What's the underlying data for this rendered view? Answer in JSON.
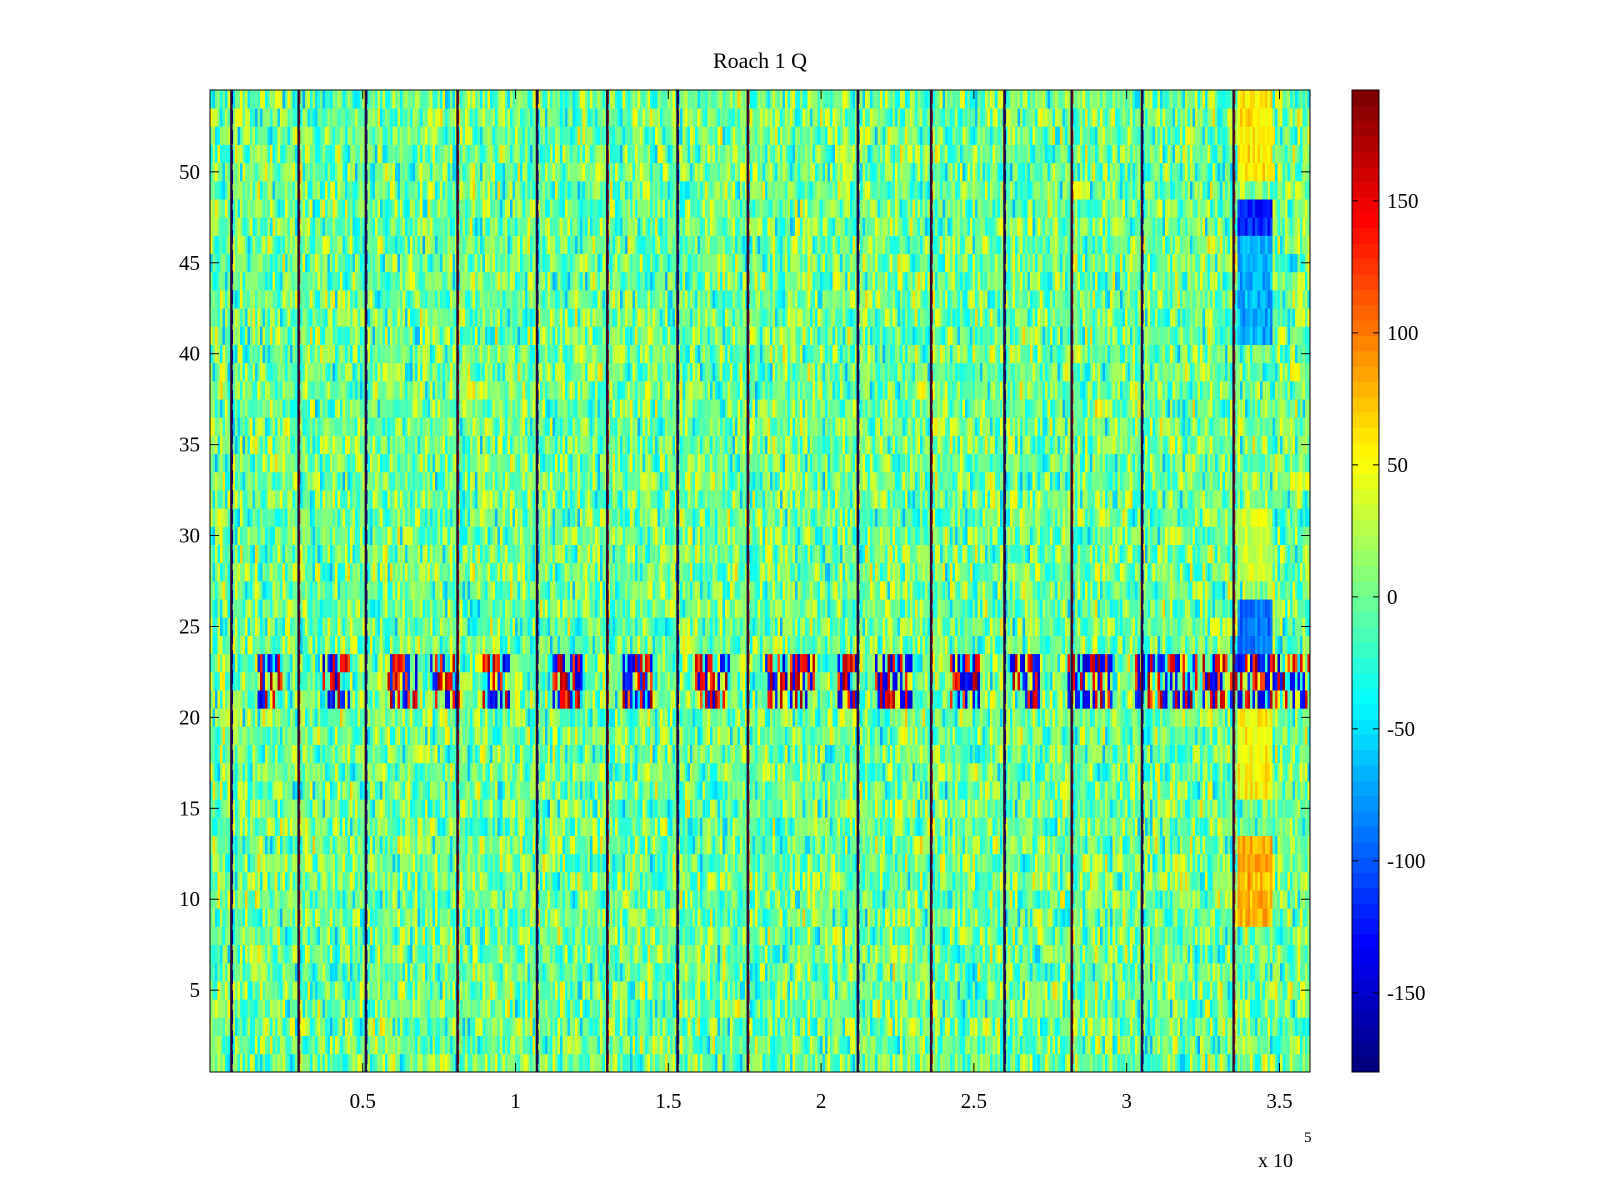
{
  "chart_data": {
    "type": "heatmap",
    "title": "Roach 1 Q",
    "xlabel": "",
    "ylabel": "",
    "colormap": "jet",
    "x_exponent_prefix": "x 10",
    "x_exponent_power": "5",
    "xlim": [
      0,
      3.6
    ],
    "ylim": [
      0.5,
      54.5
    ],
    "clim": [
      -180,
      192
    ],
    "x_ticks": [
      {
        "value": 0.5,
        "label": "0.5"
      },
      {
        "value": 1.0,
        "label": "1"
      },
      {
        "value": 1.5,
        "label": "1.5"
      },
      {
        "value": 2.0,
        "label": "2"
      },
      {
        "value": 2.5,
        "label": "2.5"
      },
      {
        "value": 3.0,
        "label": "3"
      },
      {
        "value": 3.5,
        "label": "3.5"
      }
    ],
    "y_ticks": [
      {
        "value": 5,
        "label": "5"
      },
      {
        "value": 10,
        "label": "10"
      },
      {
        "value": 15,
        "label": "15"
      },
      {
        "value": 20,
        "label": "20"
      },
      {
        "value": 25,
        "label": "25"
      },
      {
        "value": 30,
        "label": "30"
      },
      {
        "value": 35,
        "label": "35"
      },
      {
        "value": 40,
        "label": "40"
      },
      {
        "value": 45,
        "label": "45"
      },
      {
        "value": 50,
        "label": "50"
      }
    ],
    "colorbar_ticks": [
      {
        "value": 150,
        "label": "150"
      },
      {
        "value": 100,
        "label": "100"
      },
      {
        "value": 50,
        "label": "50"
      },
      {
        "value": 0,
        "label": "0"
      },
      {
        "value": -50,
        "label": "-50"
      },
      {
        "value": -100,
        "label": "-100"
      },
      {
        "value": -150,
        "label": "-150"
      }
    ],
    "rows": 54,
    "background_noise_range": [
      -45,
      45
    ],
    "vertical_stripes_x": [
      0.07,
      0.29,
      0.51,
      0.81,
      1.07,
      1.3,
      1.53,
      1.76,
      2.12,
      2.36,
      2.6,
      2.82,
      3.05,
      3.35
    ],
    "oscillation_band_rows": [
      21,
      22,
      23
    ],
    "oscillation_segments_x": [
      [
        0.15,
        0.24
      ],
      [
        0.36,
        0.46
      ],
      [
        0.58,
        0.68
      ],
      [
        0.72,
        0.82
      ],
      [
        0.88,
        0.98
      ],
      [
        1.12,
        1.22
      ],
      [
        1.35,
        1.45
      ],
      [
        1.59,
        1.7
      ],
      [
        1.82,
        1.98
      ],
      [
        2.05,
        2.12
      ],
      [
        2.18,
        2.3
      ],
      [
        2.42,
        2.52
      ],
      [
        2.62,
        2.72
      ],
      [
        2.8,
        2.95
      ],
      [
        3.03,
        3.12
      ],
      [
        3.12,
        3.23
      ],
      [
        3.25,
        3.35
      ],
      [
        3.35,
        3.6
      ]
    ],
    "end_region_x": [
      3.36,
      3.48
    ],
    "end_region_blocks": [
      {
        "rows": [
          47,
          48
        ],
        "level": -120
      },
      {
        "rows": [
          41,
          46
        ],
        "level": -70
      },
      {
        "rows": [
          24,
          26
        ],
        "level": -90
      },
      {
        "rows": [
          9,
          13
        ],
        "level": 80
      },
      {
        "rows": [
          16,
          20
        ],
        "level": 55
      },
      {
        "rows": [
          50,
          54
        ],
        "level": 60
      },
      {
        "rows": [
          28,
          31
        ],
        "level": 35
      }
    ]
  }
}
